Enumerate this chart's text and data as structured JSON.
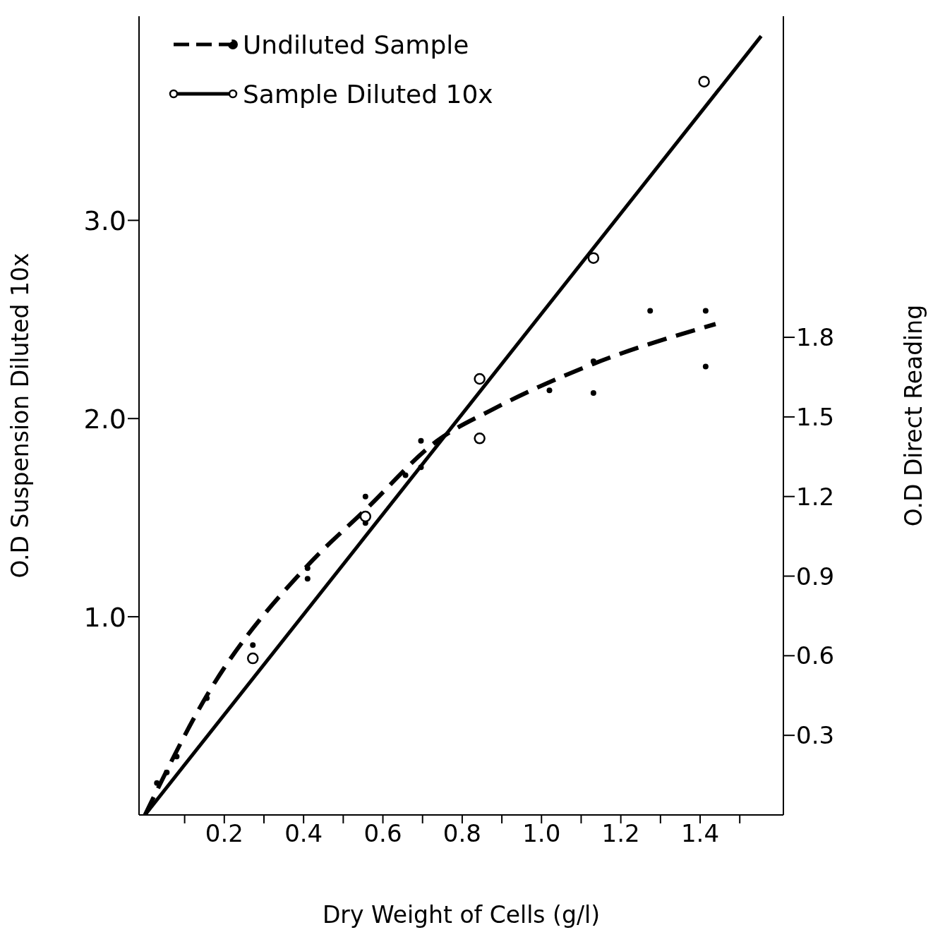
{
  "chart_data": {
    "type": "line",
    "xlabel": "Dry Weight of Cells (g/l)",
    "ylabel": "O.D Suspension Diluted 10x",
    "y2label": "O.D Direct Reading",
    "xlim": [
      -0.015,
      1.61
    ],
    "xticks": [
      {
        "value": 0.1,
        "label": null
      },
      0.2,
      {
        "value": 0.3,
        "label": null
      },
      0.4,
      {
        "value": 0.5,
        "label": null
      },
      0.6,
      {
        "value": 0.7,
        "label": null
      },
      0.8,
      {
        "value": 0.9,
        "label": null
      },
      {
        "value": 1.0,
        "label": "1.0"
      },
      {
        "value": 1.1,
        "label": null
      },
      1.2,
      {
        "value": 1.3,
        "label": null
      },
      1.4,
      {
        "value": 1.5,
        "label": null
      }
    ],
    "ylim": [
      0,
      4.03
    ],
    "yticks": [
      {
        "value": 1,
        "label": "1.0"
      },
      {
        "value": 2,
        "label": "2.0"
      },
      {
        "value": 3,
        "label": "3.0"
      }
    ],
    "y2lim": [
      0,
      3.01
    ],
    "y2ticks": [
      0.3,
      0.6,
      0.9,
      1.2,
      1.5,
      1.8
    ],
    "legend": "top left",
    "grid": false,
    "series": [
      {
        "name": "Undiluted Sample",
        "axis": "y2",
        "color": "#000000",
        "line_style": "dashed",
        "x": [
          0,
          0.156,
          0.41,
          0.556,
          0.737,
          0.879,
          1.131,
          1.439
        ],
        "values": [
          0,
          0.45,
          0.94,
          1.15,
          1.41,
          1.53,
          1.7,
          1.85
        ]
      },
      {
        "name": "Sample Diluted 10x",
        "color": "#000000",
        "line_style": "solid",
        "x": [
          0,
          1.554
        ],
        "values": [
          0,
          3.93
        ]
      },
      {
        "type": "scatter",
        "axis": "y2",
        "color": "#000000",
        "x": [
          0.03,
          0.055,
          0.08,
          0.156,
          0.272,
          0.41,
          0.41,
          0.556,
          0.556,
          0.657,
          0.696,
          0.696,
          1.02,
          1.131,
          1.131,
          1.274,
          1.414,
          1.414
        ],
        "values": [
          0.12,
          0.16,
          0.22,
          0.44,
          0.64,
          0.93,
          0.89,
          1.2,
          1.1,
          1.28,
          1.41,
          1.31,
          1.6,
          1.59,
          1.71,
          1.9,
          1.9,
          1.69
        ]
      },
      {
        "type": "scatter",
        "color": "#000000",
        "marker": "circle",
        "x": [
          0.272,
          0.556,
          0.844,
          0.844,
          1.131,
          1.41
        ],
        "values": [
          0.79,
          1.506,
          2.2,
          1.9,
          2.81,
          3.7
        ]
      }
    ]
  }
}
